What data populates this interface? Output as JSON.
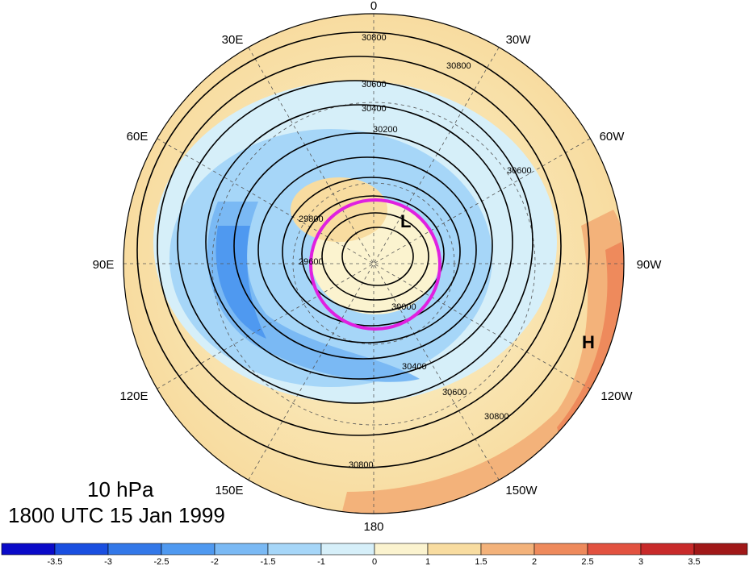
{
  "level_label": "10 hPa",
  "time_label": "1800 UTC 15 Jan 1999",
  "longitude_labels": [
    "0",
    "30W",
    "60W",
    "90W",
    "120W",
    "150W",
    "180",
    "150E",
    "120E",
    "90E",
    "60E",
    "30E"
  ],
  "pressure_center_markers": [
    "L",
    "H"
  ],
  "contour_labels": [
    "30800",
    "30600",
    "30400",
    "30200",
    "30000",
    "29800",
    "29600"
  ],
  "colorbar": {
    "tick_labels": [
      "-3.5",
      "-3",
      "-2.5",
      "-2",
      "-1.5",
      "-1",
      "0",
      "1",
      "1.5",
      "2",
      "2.5",
      "3",
      "3.5"
    ],
    "colors": [
      "#0a0ac8",
      "#1a4fe0",
      "#3378e8",
      "#4f99f0",
      "#7ab9f4",
      "#a6d6f8",
      "#d6eff9",
      "#fbf3cf",
      "#f8dca0",
      "#f3b27a",
      "#ee8a5c",
      "#e25240",
      "#c82a2a",
      "#a01818"
    ]
  },
  "colors": {
    "highlight_circle": "#e020e0",
    "contour": "#000000",
    "coastline": "#333333"
  }
}
